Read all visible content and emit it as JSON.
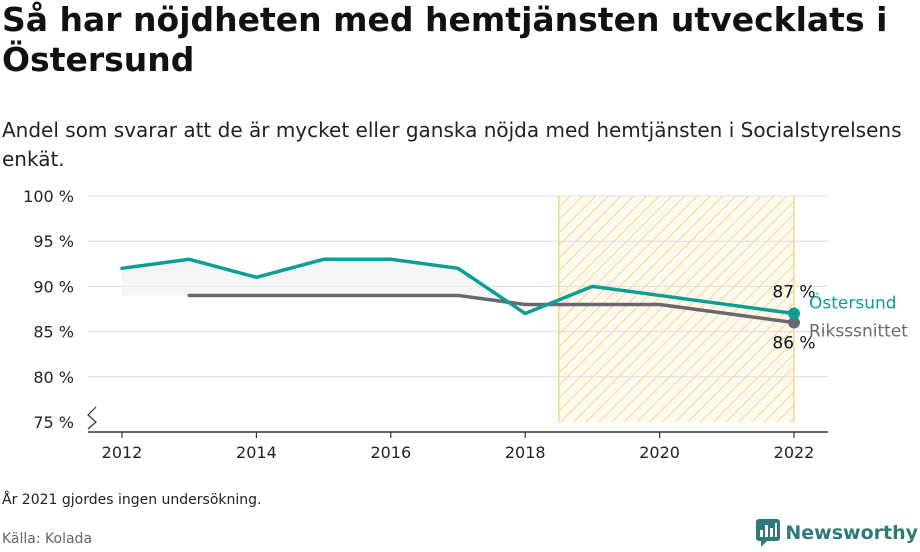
{
  "title": "Så har nöjdheten med hemtjänsten utvecklats i Östersund",
  "subtitle": "Andel som svarar att de är mycket eller ganska nöjda med hemtjänsten i Socialstyrelsens enkät.",
  "note": "År 2021 gjordes ingen undersökning.",
  "source": "Källa: Kolada",
  "brand": {
    "name": "Newsworthy",
    "icon": "chart-speech-bubble-icon",
    "color": "#2f7a78"
  },
  "chart_data": {
    "type": "line",
    "x": [
      2012,
      2013,
      2014,
      2015,
      2016,
      2017,
      2018,
      2019,
      2020,
      2022
    ],
    "xticks": [
      "2012",
      "2014",
      "2016",
      "2018",
      "2020",
      "2022"
    ],
    "yticks": [
      "75 %",
      "80 %",
      "85 %",
      "90 %",
      "95 %",
      "100 %"
    ],
    "ylim": [
      75,
      100
    ],
    "xlim": [
      2012,
      2022
    ],
    "grid": true,
    "axis_break": true,
    "highlight_range": [
      2018.5,
      2022
    ],
    "series": [
      {
        "name": "Östersund",
        "color": "#0a9e95",
        "x": [
          2012,
          2013,
          2014,
          2015,
          2016,
          2017,
          2018,
          2019,
          2020,
          2022
        ],
        "values": [
          92,
          93,
          91,
          93,
          93,
          92,
          87,
          90,
          89,
          87
        ],
        "end_label": "87 %"
      },
      {
        "name": "Riksssnittet",
        "color": "#6b676e",
        "x": [
          2013,
          2014,
          2015,
          2016,
          2017,
          2018,
          2019,
          2020,
          2022
        ],
        "values": [
          89,
          89,
          89,
          89,
          89,
          88,
          88,
          88,
          86
        ],
        "end_label": "86 %"
      }
    ]
  }
}
